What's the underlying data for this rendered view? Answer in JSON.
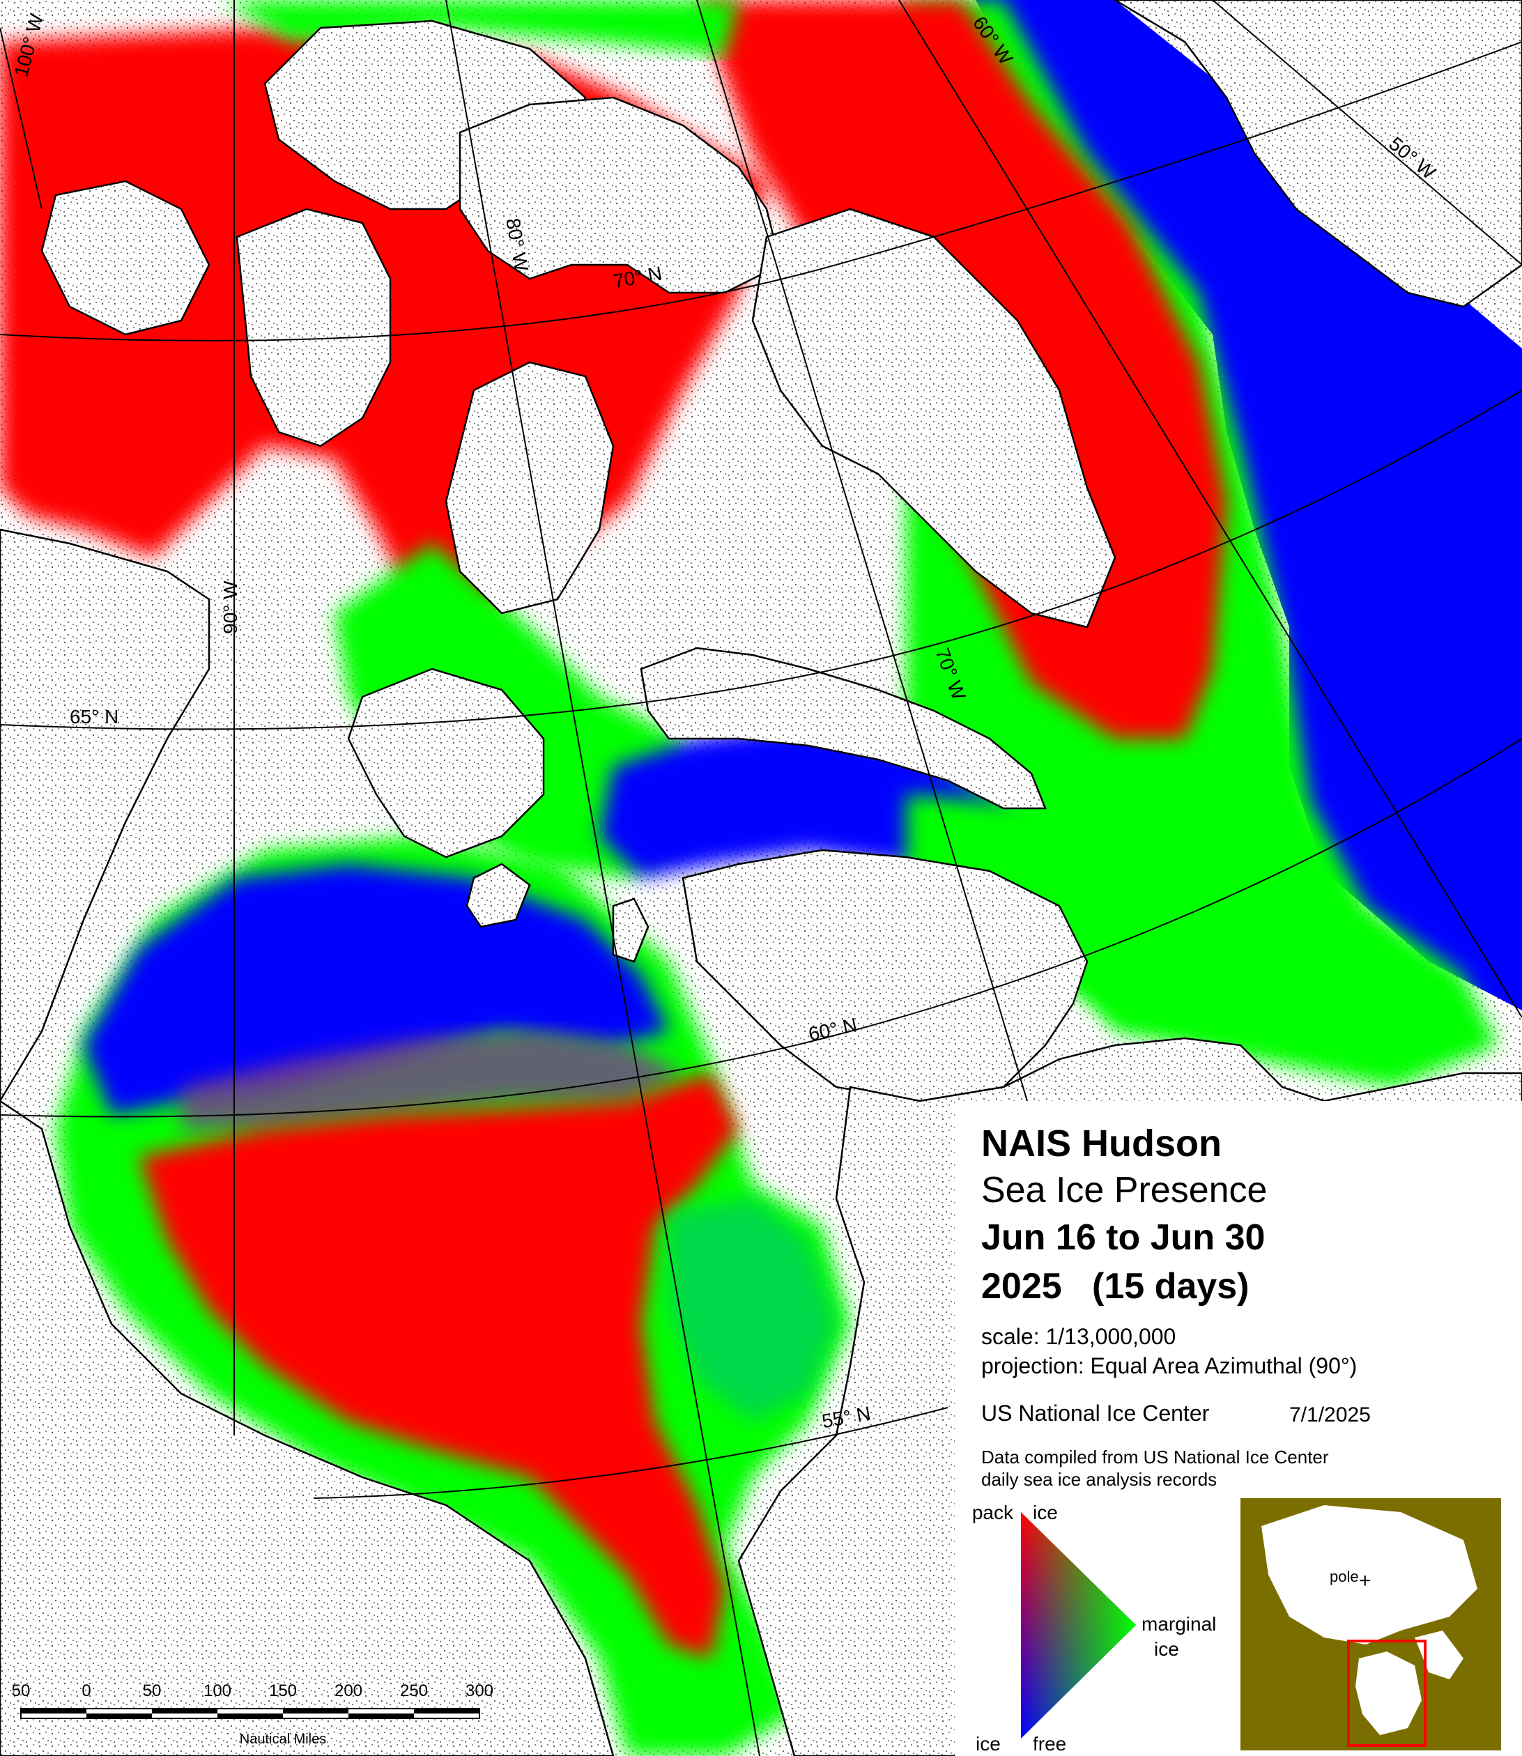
{
  "title": "NAIS Hudson",
  "subtitle": "Sea Ice Presence",
  "date_range": "Jun 16 to Jun 30",
  "year_period": "2025   (15 days)",
  "scale": "scale: 1/13,000,000",
  "projection": "projection: Equal Area Azimuthal (90°)",
  "agency": "US National Ice Center",
  "issue_date": "7/1/2025",
  "data_note_1": "Data compiled from US National Ice Center",
  "data_note_2": "daily sea ice analysis records",
  "graticule": {
    "lon_100": "100° W",
    "lon_90": "90° W",
    "lon_80": "80° W",
    "lon_70": "70° W",
    "lon_60": "60° W",
    "lon_50": "50° W",
    "lat_70": "70° N",
    "lat_65": "65° N",
    "lat_60": "60° N",
    "lat_55": "55° N"
  },
  "legend": {
    "pack": "pack",
    "ice_top": "ice",
    "marginal": "marginal",
    "marginal_ice": "ice",
    "ice_bottom": "ice",
    "free": "free",
    "colors": {
      "pack_ice": "#ff0000",
      "marginal_ice": "#00ff00",
      "ice_free": "#0000ff",
      "land": "#ffffff",
      "inset_land": "#7a6e00"
    }
  },
  "inset": {
    "pole": "pole"
  },
  "scalebar": {
    "ticks": [
      "50",
      "0",
      "50",
      "100",
      "150",
      "200",
      "250",
      "300"
    ],
    "units": "Nautical Miles"
  }
}
